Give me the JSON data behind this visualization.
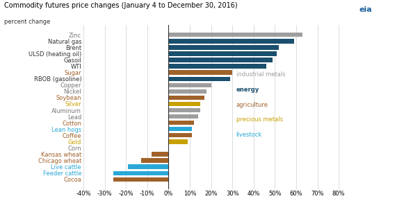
{
  "title": "Commodity futures price changes (January 4 to December 30, 2016)",
  "subtitle": "percent change",
  "categories": [
    "Zinc",
    "Natural gas",
    "Brent",
    "ULSD (heating oil)",
    "Gasoil",
    "WTI",
    "Sugar",
    "RBOB (gasoline)",
    "Copper",
    "Nickel",
    "Soybean",
    "Silver",
    "Aluminum",
    "Lead",
    "Cotton",
    "Lean hogs",
    "Coffee",
    "Gold",
    "Corn",
    "Kansas wheat",
    "Chicago wheat",
    "Live cattle",
    "Feeder cattle",
    "Cocoa"
  ],
  "values": [
    63,
    59,
    52,
    51,
    49,
    46,
    30,
    29,
    20,
    18,
    17,
    15,
    15,
    14,
    12,
    11,
    11,
    9,
    0,
    -8,
    -13,
    -19,
    -26,
    -26
  ],
  "bar_colors": [
    "#9e9e9e",
    "#1a4f6e",
    "#1a4f6e",
    "#1a4f6e",
    "#1a4f6e",
    "#1a4f6e",
    "#a0622a",
    "#1a4f6e",
    "#9e9e9e",
    "#9e9e9e",
    "#a0622a",
    "#c8a000",
    "#9e9e9e",
    "#9e9e9e",
    "#a0622a",
    "#29a8d8",
    "#a0622a",
    "#c8a000",
    "#a0622a",
    "#a0622a",
    "#a0622a",
    "#29a8d8",
    "#29a8d8",
    "#a0622a"
  ],
  "label_colors": [
    "#777777",
    "#333333",
    "#333333",
    "#333333",
    "#333333",
    "#333333",
    "#a0622a",
    "#333333",
    "#777777",
    "#777777",
    "#a0622a",
    "#c8a000",
    "#777777",
    "#777777",
    "#a0622a",
    "#29a8d8",
    "#a0622a",
    "#c8a000",
    "#777777",
    "#a0622a",
    "#a0622a",
    "#29a8d8",
    "#29a8d8",
    "#a0622a"
  ],
  "xlim": [
    -40,
    85
  ],
  "xticks": [
    -40,
    -30,
    -20,
    -10,
    0,
    10,
    20,
    30,
    40,
    50,
    60,
    70,
    80
  ],
  "xtick_labels": [
    "-40%",
    "-30%",
    "-20%",
    "-10%",
    "0%",
    "10%",
    "20%",
    "30%",
    "40%",
    "50%",
    "60%",
    "70%",
    "80%"
  ],
  "legend_items": [
    {
      "label": "industrial metals",
      "color": "#9e9e9e",
      "bold": false
    },
    {
      "label": "energy",
      "color": "#1a4f6e",
      "bold": true
    },
    {
      "label": "agriculture",
      "color": "#a0622a",
      "bold": false
    },
    {
      "label": "precious metals",
      "color": "#c8a000",
      "bold": false
    },
    {
      "label": "livestock",
      "color": "#29a8d8",
      "bold": false
    }
  ],
  "background_color": "#ffffff",
  "bar_height": 0.7,
  "title_fontsize": 7.0,
  "label_fontsize": 6.0,
  "tick_fontsize": 6.0
}
